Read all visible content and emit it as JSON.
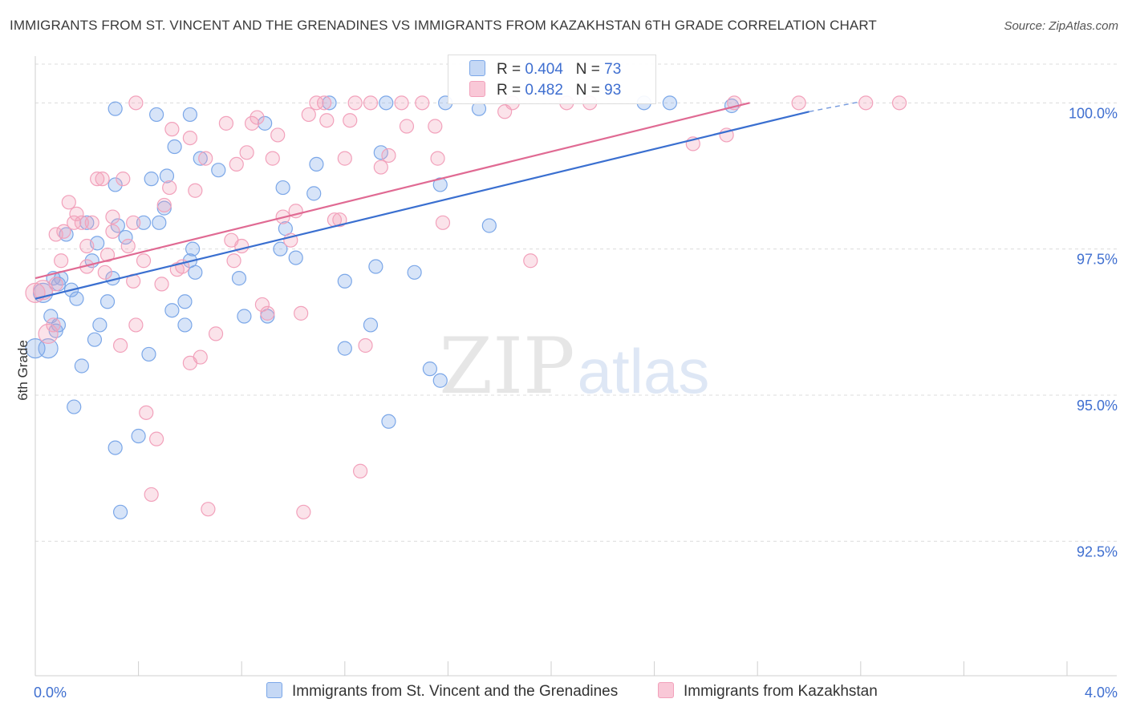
{
  "title": "IMMIGRANTS FROM ST. VINCENT AND THE GRENADINES VS IMMIGRANTS FROM KAZAKHSTAN 6TH GRADE CORRELATION CHART",
  "source": "Source: ZipAtlas.com",
  "watermark": {
    "zip": "ZIP",
    "atlas": "atlas"
  },
  "legend": {
    "series1": {
      "r_label": "R =",
      "r_value": "0.404",
      "n_label": "N =",
      "n_value": "73"
    },
    "series2": {
      "r_label": "R =",
      "r_value": "0.482",
      "n_label": "N =",
      "n_value": "93"
    }
  },
  "chart_data": {
    "type": "scatter",
    "xlabel": "",
    "ylabel": "6th Grade",
    "xlim": [
      0.0,
      4.0
    ],
    "ylim": [
      90.2,
      100.8
    ],
    "x_tick_labels": [
      {
        "value": 0.0,
        "label": "0.0%"
      },
      {
        "value": 4.0,
        "label": "4.0%"
      }
    ],
    "y_ticks": [
      {
        "value": 100.0,
        "label": "100.0%"
      },
      {
        "value": 97.5,
        "label": "97.5%"
      },
      {
        "value": 95.0,
        "label": "95.0%"
      },
      {
        "value": 92.5,
        "label": "92.5%"
      }
    ],
    "grid": "horizontal-dashed",
    "legend_placement": "top-center",
    "series": [
      {
        "name": "Immigrants from St. Vincent and the Grenadines",
        "color": "#7ba7e8",
        "line_color": "#3a6fd0",
        "trend": {
          "x0": 0.0,
          "y0": 96.65,
          "x1": 3.0,
          "y1": 99.85,
          "dash_to_x": 3.2,
          "dash_to_y": 100.02
        },
        "points": [
          [
            0.0,
            95.8
          ],
          [
            0.05,
            95.8
          ],
          [
            0.08,
            96.1
          ],
          [
            0.06,
            96.35
          ],
          [
            0.09,
            96.2
          ],
          [
            0.03,
            96.75
          ],
          [
            0.07,
            97.0
          ],
          [
            0.09,
            96.9
          ],
          [
            0.1,
            97.0
          ],
          [
            0.16,
            96.65
          ],
          [
            0.14,
            96.8
          ],
          [
            0.12,
            97.75
          ],
          [
            0.18,
            95.5
          ],
          [
            0.15,
            94.8
          ],
          [
            0.23,
            95.95
          ],
          [
            0.25,
            96.2
          ],
          [
            0.28,
            96.6
          ],
          [
            0.2,
            97.95
          ],
          [
            0.22,
            97.3
          ],
          [
            0.24,
            97.6
          ],
          [
            0.3,
            97.0
          ],
          [
            0.32,
            97.9
          ],
          [
            0.35,
            97.7
          ],
          [
            0.31,
            94.1
          ],
          [
            0.33,
            93.0
          ],
          [
            0.4,
            94.3
          ],
          [
            0.44,
            95.7
          ],
          [
            0.42,
            97.95
          ],
          [
            0.48,
            97.95
          ],
          [
            0.5,
            98.2
          ],
          [
            0.45,
            98.7
          ],
          [
            0.51,
            98.75
          ],
          [
            0.54,
            99.25
          ],
          [
            0.47,
            99.8
          ],
          [
            0.6,
            99.8
          ],
          [
            0.31,
            98.6
          ],
          [
            0.62,
            97.1
          ],
          [
            0.58,
            96.6
          ],
          [
            0.53,
            96.45
          ],
          [
            0.58,
            96.2
          ],
          [
            0.6,
            97.3
          ],
          [
            0.61,
            97.5
          ],
          [
            0.64,
            99.05
          ],
          [
            0.71,
            98.85
          ],
          [
            0.79,
            97.0
          ],
          [
            0.81,
            96.35
          ],
          [
            0.9,
            96.35
          ],
          [
            0.89,
            99.65
          ],
          [
            0.95,
            97.5
          ],
          [
            0.97,
            97.85
          ],
          [
            1.01,
            97.35
          ],
          [
            0.96,
            98.55
          ],
          [
            1.08,
            98.45
          ],
          [
            1.09,
            98.95
          ],
          [
            1.14,
            100.0
          ],
          [
            1.2,
            95.8
          ],
          [
            1.2,
            96.95
          ],
          [
            1.3,
            96.2
          ],
          [
            1.32,
            97.2
          ],
          [
            1.34,
            99.15
          ],
          [
            1.36,
            100.0
          ],
          [
            1.37,
            94.55
          ],
          [
            1.47,
            97.1
          ],
          [
            1.53,
            95.45
          ],
          [
            1.57,
            95.25
          ],
          [
            1.57,
            98.6
          ],
          [
            1.59,
            100.0
          ],
          [
            1.76,
            97.9
          ],
          [
            1.72,
            99.9
          ],
          [
            2.36,
            100.0
          ],
          [
            2.46,
            100.0
          ],
          [
            2.7,
            99.95
          ],
          [
            0.31,
            99.9
          ]
        ]
      },
      {
        "name": "Immigrants from Kazakhstan",
        "color": "#f2a1bb",
        "line_color": "#e06a93",
        "trend": {
          "x0": 0.0,
          "y0": 97.0,
          "x1": 2.77,
          "y1": 100.0
        },
        "points": [
          [
            0.0,
            96.75
          ],
          [
            0.03,
            96.8
          ],
          [
            0.05,
            96.05
          ],
          [
            0.07,
            96.2
          ],
          [
            0.08,
            96.9
          ],
          [
            0.1,
            97.3
          ],
          [
            0.08,
            97.75
          ],
          [
            0.11,
            97.8
          ],
          [
            0.13,
            98.3
          ],
          [
            0.15,
            97.95
          ],
          [
            0.16,
            98.1
          ],
          [
            0.18,
            97.95
          ],
          [
            0.2,
            97.55
          ],
          [
            0.2,
            97.2
          ],
          [
            0.22,
            97.95
          ],
          [
            0.24,
            98.7
          ],
          [
            0.26,
            98.7
          ],
          [
            0.27,
            97.1
          ],
          [
            0.28,
            97.4
          ],
          [
            0.3,
            97.8
          ],
          [
            0.3,
            98.05
          ],
          [
            0.34,
            98.7
          ],
          [
            0.36,
            97.55
          ],
          [
            0.38,
            97.95
          ],
          [
            0.38,
            96.95
          ],
          [
            0.39,
            96.2
          ],
          [
            0.42,
            97.3
          ],
          [
            0.43,
            94.7
          ],
          [
            0.45,
            93.3
          ],
          [
            0.47,
            94.25
          ],
          [
            0.49,
            96.9
          ],
          [
            0.5,
            98.25
          ],
          [
            0.52,
            98.55
          ],
          [
            0.53,
            99.55
          ],
          [
            0.55,
            97.15
          ],
          [
            0.57,
            97.2
          ],
          [
            0.6,
            99.4
          ],
          [
            0.6,
            95.55
          ],
          [
            0.62,
            98.5
          ],
          [
            0.64,
            95.65
          ],
          [
            0.66,
            99.05
          ],
          [
            0.67,
            93.05
          ],
          [
            0.7,
            96.05
          ],
          [
            0.74,
            99.65
          ],
          [
            0.76,
            97.65
          ],
          [
            0.77,
            97.3
          ],
          [
            0.78,
            98.95
          ],
          [
            0.8,
            97.55
          ],
          [
            0.82,
            99.15
          ],
          [
            0.84,
            99.65
          ],
          [
            0.86,
            99.75
          ],
          [
            0.88,
            96.55
          ],
          [
            0.9,
            96.4
          ],
          [
            0.92,
            99.05
          ],
          [
            0.94,
            99.45
          ],
          [
            0.96,
            98.05
          ],
          [
            0.99,
            97.65
          ],
          [
            1.01,
            98.15
          ],
          [
            1.03,
            96.4
          ],
          [
            1.04,
            93.0
          ],
          [
            1.06,
            99.8
          ],
          [
            1.09,
            100.0
          ],
          [
            1.12,
            100.0
          ],
          [
            1.13,
            99.7
          ],
          [
            1.16,
            98.0
          ],
          [
            1.18,
            98.0
          ],
          [
            1.2,
            99.05
          ],
          [
            1.22,
            99.7
          ],
          [
            1.24,
            100.0
          ],
          [
            1.26,
            93.7
          ],
          [
            1.28,
            95.85
          ],
          [
            1.3,
            100.0
          ],
          [
            1.34,
            98.9
          ],
          [
            1.37,
            99.1
          ],
          [
            1.42,
            100.0
          ],
          [
            1.44,
            99.6
          ],
          [
            1.5,
            100.0
          ],
          [
            1.55,
            99.6
          ],
          [
            1.56,
            99.05
          ],
          [
            1.58,
            97.95
          ],
          [
            1.82,
            99.85
          ],
          [
            1.85,
            100.0
          ],
          [
            1.92,
            97.3
          ],
          [
            2.06,
            100.0
          ],
          [
            2.15,
            100.0
          ],
          [
            2.55,
            99.3
          ],
          [
            2.68,
            99.45
          ],
          [
            2.71,
            100.0
          ],
          [
            2.96,
            100.0
          ],
          [
            3.22,
            100.0
          ],
          [
            3.35,
            100.0
          ],
          [
            0.33,
            95.85
          ],
          [
            0.39,
            100.0
          ]
        ]
      }
    ]
  }
}
